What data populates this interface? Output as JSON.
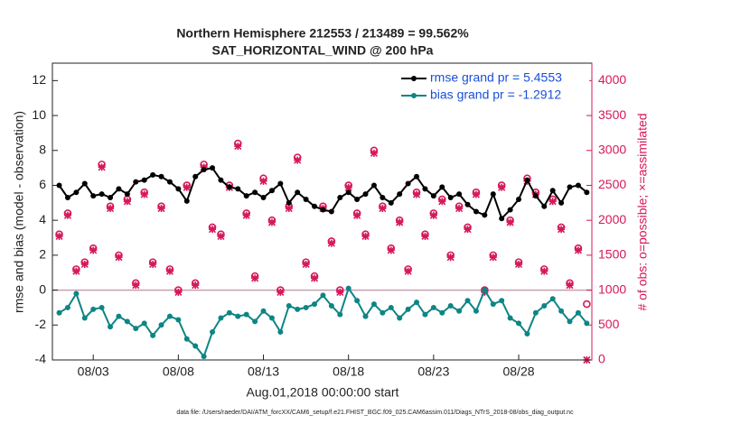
{
  "chart_data": {
    "type": "line",
    "title": "Northern Hemisphere 212553 / 213489 = 99.562%",
    "subtitle": "SAT_HORIZONTAL_WIND @ 200 hPa",
    "xlabel": "Aug.01,2018 00:00:00 start",
    "ylabel": "rmse and bias (model - observation)",
    "y2label": "# of obs: o=possible; ×=assimilated",
    "footnote": "data file: /Users/raeder/DAI/ATM_forcXX/CAM6_setup/f.e21.FHIST_BGC.f09_025.CAM6assim.011/Diags_NTrS_2018-08/obs_diag_output.nc",
    "xlim": [
      -0.4,
      31.3
    ],
    "xticks": [
      {
        "value": 2,
        "label": "08/03"
      },
      {
        "value": 7,
        "label": "08/08"
      },
      {
        "value": 12,
        "label": "08/13"
      },
      {
        "value": 17,
        "label": "08/18"
      },
      {
        "value": 22,
        "label": "08/23"
      },
      {
        "value": 27,
        "label": "08/28"
      }
    ],
    "ylim": [
      -4,
      13
    ],
    "yticks": [
      -4,
      -2,
      0,
      2,
      4,
      6,
      8,
      10,
      12
    ],
    "y2lim": [
      0,
      4250
    ],
    "y2ticks": [
      0,
      500,
      1000,
      1500,
      2000,
      2500,
      3000,
      3500,
      4000
    ],
    "reference_line": 0,
    "legend": "upper right",
    "x": [
      0,
      0.5,
      1,
      1.5,
      2,
      2.5,
      3,
      3.5,
      4,
      4.5,
      5,
      5.5,
      6,
      6.5,
      7,
      7.5,
      8,
      8.5,
      9,
      9.5,
      10,
      10.5,
      11,
      11.5,
      12,
      12.5,
      13,
      13.5,
      14,
      14.5,
      15,
      15.5,
      16,
      16.5,
      17,
      17.5,
      18,
      18.5,
      19,
      19.5,
      20,
      20.5,
      21,
      21.5,
      22,
      22.5,
      23,
      23.5,
      24,
      24.5,
      25,
      25.5,
      26,
      26.5,
      27,
      27.5,
      28,
      28.5,
      29,
      29.5,
      30,
      30.5,
      31
    ],
    "series": [
      {
        "name": "rmse grand pr = 5.4553",
        "color": "#000000",
        "values": [
          6.0,
          5.3,
          5.6,
          6.1,
          5.4,
          5.5,
          5.3,
          5.8,
          5.5,
          6.2,
          6.3,
          6.6,
          6.5,
          6.2,
          5.8,
          5.1,
          6.5,
          6.9,
          7.0,
          6.3,
          5.9,
          5.8,
          5.4,
          5.6,
          5.3,
          5.7,
          6.1,
          5.0,
          5.6,
          5.2,
          4.8,
          4.6,
          4.5,
          5.3,
          5.6,
          5.2,
          5.5,
          6.0,
          5.3,
          5.0,
          5.5,
          6.1,
          6.5,
          5.8,
          5.4,
          5.9,
          5.3,
          5.5,
          4.9,
          4.5,
          4.3,
          5.5,
          4.1,
          4.6,
          5.2,
          6.3,
          5.4,
          4.8,
          5.7,
          5.0,
          5.9,
          6.0,
          5.6
        ]
      },
      {
        "name": "bias grand pr = -1.2912",
        "color": "#0e8585",
        "values": [
          -1.3,
          -1.0,
          -0.2,
          -1.6,
          -1.1,
          -1.0,
          -2.1,
          -1.5,
          -1.8,
          -2.2,
          -1.9,
          -2.6,
          -2.0,
          -1.5,
          -1.7,
          -2.8,
          -3.2,
          -3.8,
          -2.4,
          -1.6,
          -1.3,
          -1.5,
          -1.4,
          -1.8,
          -1.2,
          -1.6,
          -2.4,
          -0.9,
          -1.1,
          -1.0,
          -0.8,
          -0.3,
          -0.9,
          -1.4,
          0.1,
          -0.6,
          -1.5,
          -0.8,
          -1.3,
          -1.0,
          -1.6,
          -1.1,
          -0.7,
          -1.4,
          -1.0,
          -1.3,
          -0.9,
          -1.2,
          -0.6,
          -1.2,
          0.0,
          -0.8,
          -0.6,
          -1.6,
          -1.9,
          -2.5,
          -1.3,
          -0.9,
          -0.5,
          -1.2,
          -1.8,
          -1.3,
          -1.9
        ]
      }
    ],
    "y2_series": [
      {
        "marker": "circle",
        "color": "#d6185b",
        "axis": "y2",
        "values": [
          1800,
          2100,
          1300,
          1400,
          1600,
          2800,
          2200,
          1500,
          2300,
          1100,
          2400,
          1400,
          2200,
          1300,
          1000,
          2500,
          1100,
          2800,
          1900,
          1800,
          2500,
          3100,
          2100,
          1200,
          2600,
          2000,
          1000,
          2200,
          2900,
          1400,
          1200,
          2200,
          1700,
          1000,
          2500,
          2100,
          1800,
          3000,
          2200,
          1600,
          2000,
          1300,
          2400,
          1800,
          2100,
          2300,
          1500,
          2200,
          1900,
          2400,
          1000,
          1500,
          2500,
          2000,
          1400,
          2600,
          2400,
          1300,
          2300,
          1900,
          1100,
          1600,
          800
        ]
      },
      {
        "marker": "star",
        "color": "#d6185b",
        "axis": "y2",
        "values": [
          1770,
          2070,
          1270,
          1370,
          1570,
          2760,
          2170,
          1470,
          2270,
          1070,
          2370,
          1370,
          2170,
          1270,
          970,
          2470,
          1070,
          2760,
          1870,
          1770,
          2470,
          3060,
          2070,
          1170,
          2560,
          1970,
          970,
          2170,
          2860,
          1370,
          1170,
          2170,
          1670,
          970,
          2470,
          2070,
          1770,
          2960,
          2170,
          1570,
          1970,
          1270,
          2370,
          1770,
          2070,
          2270,
          1470,
          2170,
          1870,
          2370,
          970,
          1470,
          2470,
          1970,
          1370,
          2560,
          2370,
          1270,
          2270,
          1870,
          1070,
          1570,
          0
        ]
      }
    ]
  }
}
